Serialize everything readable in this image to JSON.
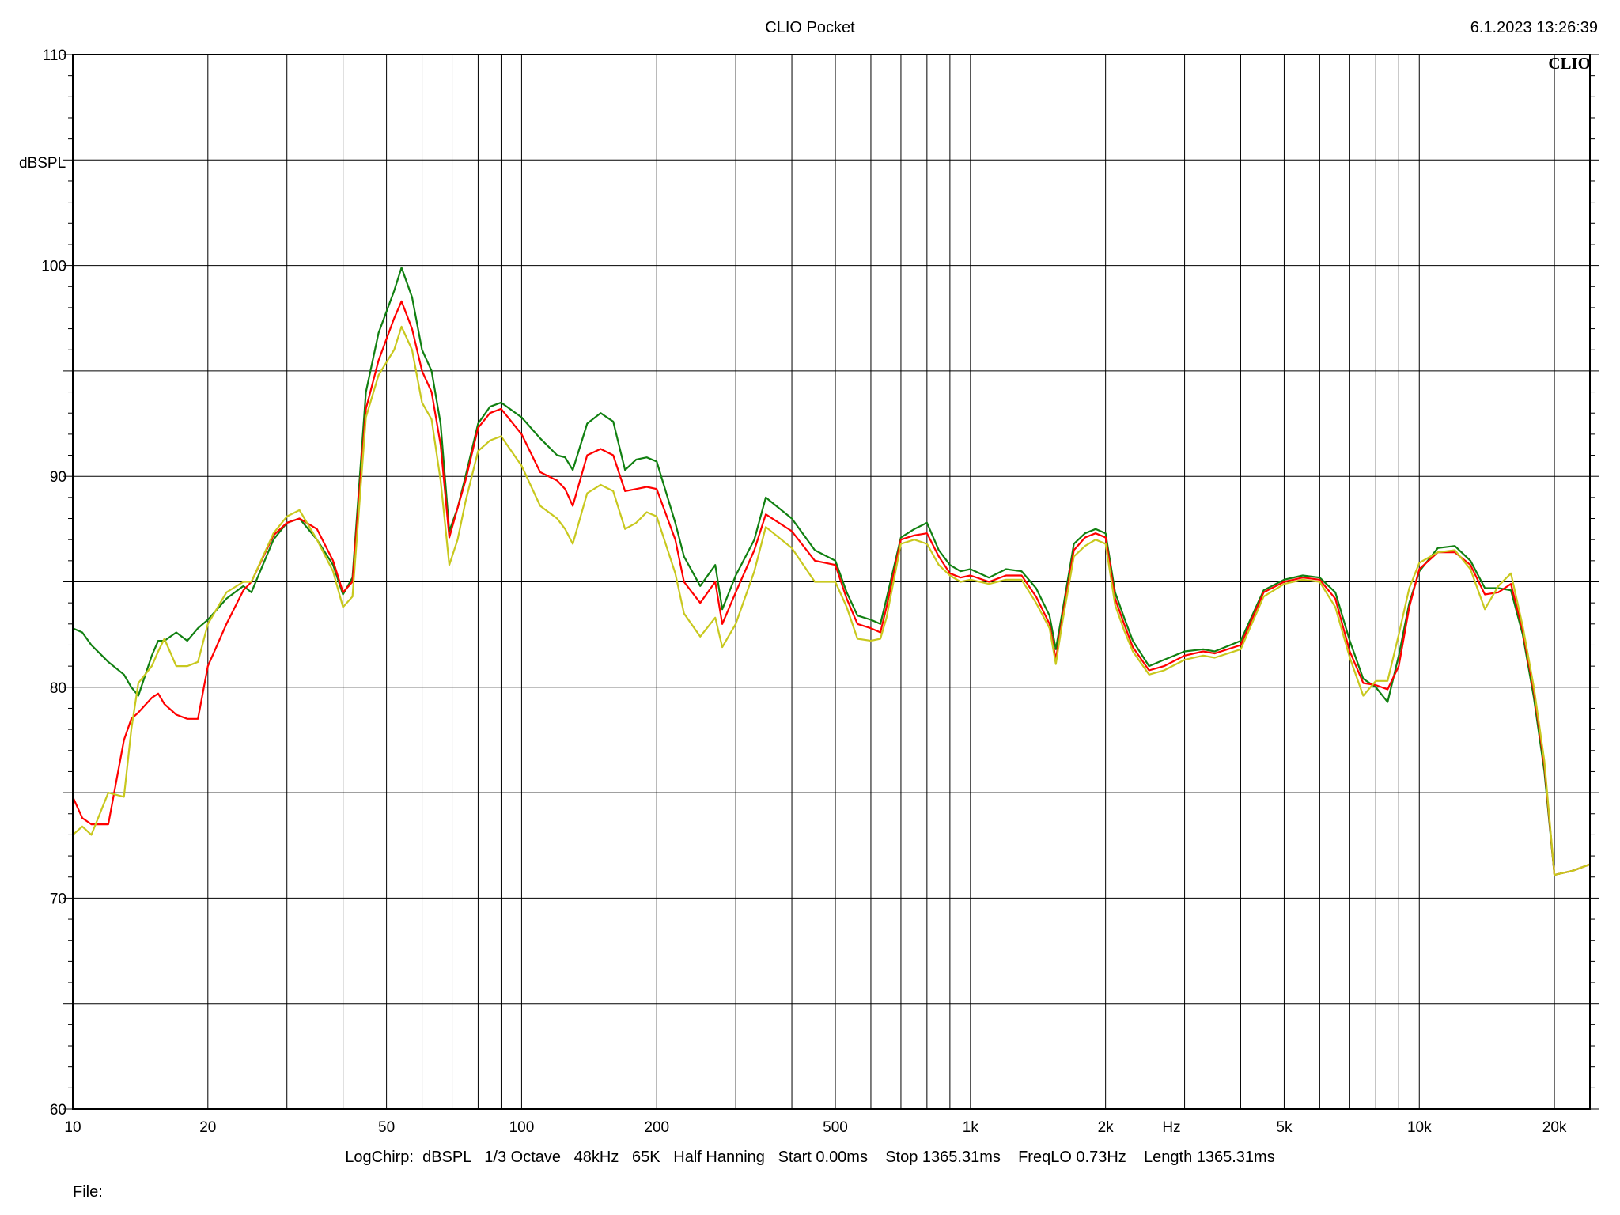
{
  "header": {
    "title": "CLIO Pocket",
    "timestamp": "6.1.2023 13:26:39",
    "logo": "CLIO"
  },
  "footer": {
    "params": "LogChirp:  dBSPL   1/3 Octave   48kHz   65K   Half Hanning   Start 0.00ms    Stop 1365.31ms    FreqLO 0.73Hz    Length 1365.31ms",
    "file_label": "File:"
  },
  "chart_data": {
    "type": "line",
    "title": "",
    "xlabel": "Hz",
    "ylabel": "dBSPL",
    "x_scale": "log",
    "xlim": [
      10,
      24000
    ],
    "ylim": [
      60,
      110
    ],
    "grid": true,
    "x_ticks": [
      10,
      20,
      50,
      100,
      200,
      500,
      1000,
      2000,
      5000,
      10000,
      20000
    ],
    "x_tick_labels": [
      "10",
      "20",
      "50",
      "100",
      "200",
      "500",
      "1k",
      "2k",
      "5k",
      "10k",
      "20k"
    ],
    "x_axis_unit_label": "Hz",
    "y_ticks": [
      60,
      70,
      80,
      90,
      100,
      110
    ],
    "y_tick_labels": [
      "60",
      "70",
      "80",
      "90",
      "100",
      "110"
    ],
    "series": [
      {
        "color": "#118011",
        "x": [
          10,
          10.5,
          11,
          12,
          13,
          13.5,
          14,
          15,
          15.5,
          16,
          17,
          18,
          19,
          20,
          22,
          24,
          25,
          28,
          30,
          32,
          35,
          38,
          40,
          42,
          45,
          48,
          52,
          54,
          57,
          60,
          63,
          66,
          69,
          72,
          75,
          80,
          85,
          90,
          100,
          110,
          120,
          125,
          130,
          140,
          150,
          160,
          170,
          180,
          190,
          200,
          220,
          230,
          250,
          270,
          280,
          300,
          330,
          350,
          400,
          450,
          500,
          530,
          560,
          600,
          630,
          650,
          700,
          750,
          800,
          850,
          900,
          950,
          1000,
          1100,
          1200,
          1300,
          1400,
          1500,
          1550,
          1600,
          1700,
          1800,
          1900,
          2000,
          2100,
          2200,
          2300,
          2500,
          2700,
          3000,
          3300,
          3500,
          4000,
          4500,
          5000,
          5500,
          6000,
          6500,
          7000,
          7500,
          8000,
          8500,
          9000,
          9500,
          10000,
          11000,
          12000,
          13000,
          14000,
          15000,
          16000,
          17000,
          18000,
          19000,
          20000,
          22000,
          24000
        ],
        "y": [
          82.8,
          82.6,
          82,
          81.2,
          80.6,
          80,
          79.6,
          81.5,
          82.2,
          82.2,
          82.6,
          82.2,
          82.8,
          83.2,
          84.2,
          84.8,
          84.5,
          87,
          87.8,
          88,
          87,
          85.8,
          84.4,
          85.2,
          94,
          96.8,
          98.8,
          99.9,
          98.5,
          96,
          95,
          92.5,
          87.4,
          88.5,
          90,
          92.5,
          93.3,
          93.5,
          92.8,
          91.8,
          91,
          90.9,
          90.3,
          92.5,
          93,
          92.6,
          90.3,
          90.8,
          90.9,
          90.7,
          87.8,
          86.2,
          84.8,
          85.8,
          83.7,
          85.3,
          87,
          89,
          88,
          86.5,
          86,
          84.5,
          83.4,
          83.2,
          83,
          84.2,
          87.1,
          87.5,
          87.8,
          86.5,
          85.8,
          85.5,
          85.6,
          85.2,
          85.6,
          85.5,
          84.7,
          83.4,
          81.8,
          83.5,
          86.8,
          87.3,
          87.5,
          87.3,
          84.5,
          83.3,
          82.2,
          81,
          81.3,
          81.7,
          81.8,
          81.7,
          82.2,
          84.6,
          85.1,
          85.3,
          85.2,
          84.5,
          82.2,
          80.4,
          80,
          79.3,
          81.5,
          84,
          85.5,
          86.6,
          86.7,
          86,
          84.7,
          84.7,
          84.6,
          82.5,
          79.5,
          76,
          71.1,
          71.3,
          71.6
        ]
      },
      {
        "color": "#ff0000",
        "x": [
          10,
          10.5,
          11,
          12,
          13,
          13.5,
          14,
          15,
          15.5,
          16,
          17,
          18,
          19,
          20,
          22,
          24,
          25,
          28,
          30,
          32,
          35,
          38,
          40,
          42,
          45,
          48,
          52,
          54,
          57,
          60,
          63,
          66,
          69,
          72,
          75,
          80,
          85,
          90,
          100,
          110,
          120,
          125,
          130,
          140,
          150,
          160,
          170,
          180,
          190,
          200,
          220,
          230,
          250,
          270,
          280,
          300,
          330,
          350,
          400,
          450,
          500,
          530,
          560,
          600,
          630,
          650,
          700,
          750,
          800,
          850,
          900,
          950,
          1000,
          1100,
          1200,
          1300,
          1400,
          1500,
          1550,
          1600,
          1700,
          1800,
          1900,
          2000,
          2100,
          2200,
          2300,
          2500,
          2700,
          3000,
          3300,
          3500,
          4000,
          4500,
          5000,
          5500,
          6000,
          6500,
          7000,
          7500,
          8000,
          8500,
          9000,
          9500,
          10000,
          11000,
          12000,
          13000,
          14000,
          15000,
          16000,
          17000,
          18000,
          19000,
          20000,
          22000,
          24000
        ],
        "y": [
          74.8,
          73.8,
          73.5,
          73.5,
          77.5,
          78.5,
          78.8,
          79.5,
          79.7,
          79.2,
          78.7,
          78.5,
          78.5,
          81,
          83,
          84.6,
          85,
          87.2,
          87.8,
          88,
          87.5,
          86,
          84.5,
          85,
          93.2,
          95.5,
          97.5,
          98.3,
          97,
          95,
          94,
          91.5,
          87.1,
          88.5,
          89.8,
          92.3,
          93,
          93.2,
          92,
          90.2,
          89.8,
          89.4,
          88.6,
          91,
          91.3,
          91,
          89.3,
          89.4,
          89.5,
          89.4,
          87,
          85,
          84,
          85,
          83,
          84.5,
          86.5,
          88.2,
          87.4,
          86,
          85.8,
          84.2,
          83,
          82.8,
          82.6,
          83.8,
          87,
          87.2,
          87.3,
          86.2,
          85.4,
          85.2,
          85.3,
          85,
          85.3,
          85.3,
          84.3,
          83,
          81.3,
          83.2,
          86.5,
          87.1,
          87.3,
          87.1,
          84.2,
          83,
          81.9,
          80.8,
          81,
          81.5,
          81.7,
          81.6,
          82,
          84.5,
          85,
          85.2,
          85.1,
          84.2,
          81.7,
          80.2,
          80.1,
          79.9,
          81,
          83.8,
          85.6,
          86.4,
          86.4,
          85.8,
          84.4,
          84.5,
          84.9,
          82.7,
          79.8,
          76.3,
          71.1,
          71.3,
          71.6
        ]
      },
      {
        "color": "#c8c81e",
        "x": [
          10,
          10.5,
          11,
          12,
          13,
          13.5,
          14,
          15,
          15.5,
          16,
          17,
          18,
          19,
          20,
          22,
          24,
          25,
          28,
          30,
          32,
          35,
          38,
          40,
          42,
          45,
          48,
          52,
          54,
          57,
          60,
          63,
          66,
          69,
          72,
          75,
          80,
          85,
          90,
          100,
          110,
          120,
          125,
          130,
          140,
          150,
          160,
          170,
          180,
          190,
          200,
          220,
          230,
          250,
          270,
          280,
          300,
          330,
          350,
          400,
          450,
          500,
          530,
          560,
          600,
          630,
          650,
          700,
          750,
          800,
          850,
          900,
          950,
          1000,
          1100,
          1200,
          1300,
          1400,
          1500,
          1550,
          1600,
          1700,
          1800,
          1900,
          2000,
          2100,
          2200,
          2300,
          2500,
          2700,
          3000,
          3300,
          3500,
          4000,
          4500,
          5000,
          5500,
          6000,
          6500,
          7000,
          7500,
          8000,
          8500,
          9000,
          9500,
          10000,
          11000,
          12000,
          13000,
          14000,
          15000,
          16000,
          17000,
          18000,
          19000,
          20000,
          22000,
          24000
        ],
        "y": [
          73,
          73.4,
          73,
          75,
          74.8,
          78,
          80.2,
          81,
          81.7,
          82.3,
          81,
          81,
          81.2,
          83,
          84.5,
          85,
          85,
          87.3,
          88.1,
          88.4,
          87,
          85.5,
          83.8,
          84.3,
          92.8,
          94.8,
          96,
          97.1,
          96,
          93.5,
          92.7,
          89.8,
          85.8,
          87,
          88.8,
          91.2,
          91.7,
          91.9,
          90.5,
          88.6,
          88,
          87.5,
          86.8,
          89.2,
          89.6,
          89.3,
          87.5,
          87.8,
          88.3,
          88.1,
          85.4,
          83.5,
          82.4,
          83.3,
          81.9,
          83,
          85.5,
          87.6,
          86.6,
          85,
          85,
          83.8,
          82.3,
          82.2,
          82.3,
          83.3,
          86.8,
          87,
          86.8,
          85.8,
          85.3,
          85,
          85.1,
          84.9,
          85.1,
          85.1,
          84,
          82.8,
          81.1,
          83,
          86.2,
          86.7,
          87,
          86.8,
          83.9,
          82.7,
          81.7,
          80.6,
          80.8,
          81.3,
          81.5,
          81.4,
          81.8,
          84.3,
          84.9,
          85.1,
          85,
          83.8,
          81.4,
          79.6,
          80.3,
          80.3,
          82.5,
          84.7,
          85.9,
          86.4,
          86.5,
          85.6,
          83.7,
          84.8,
          85.4,
          82.9,
          80,
          76.5,
          71.1,
          71.3,
          71.6
        ]
      }
    ]
  }
}
